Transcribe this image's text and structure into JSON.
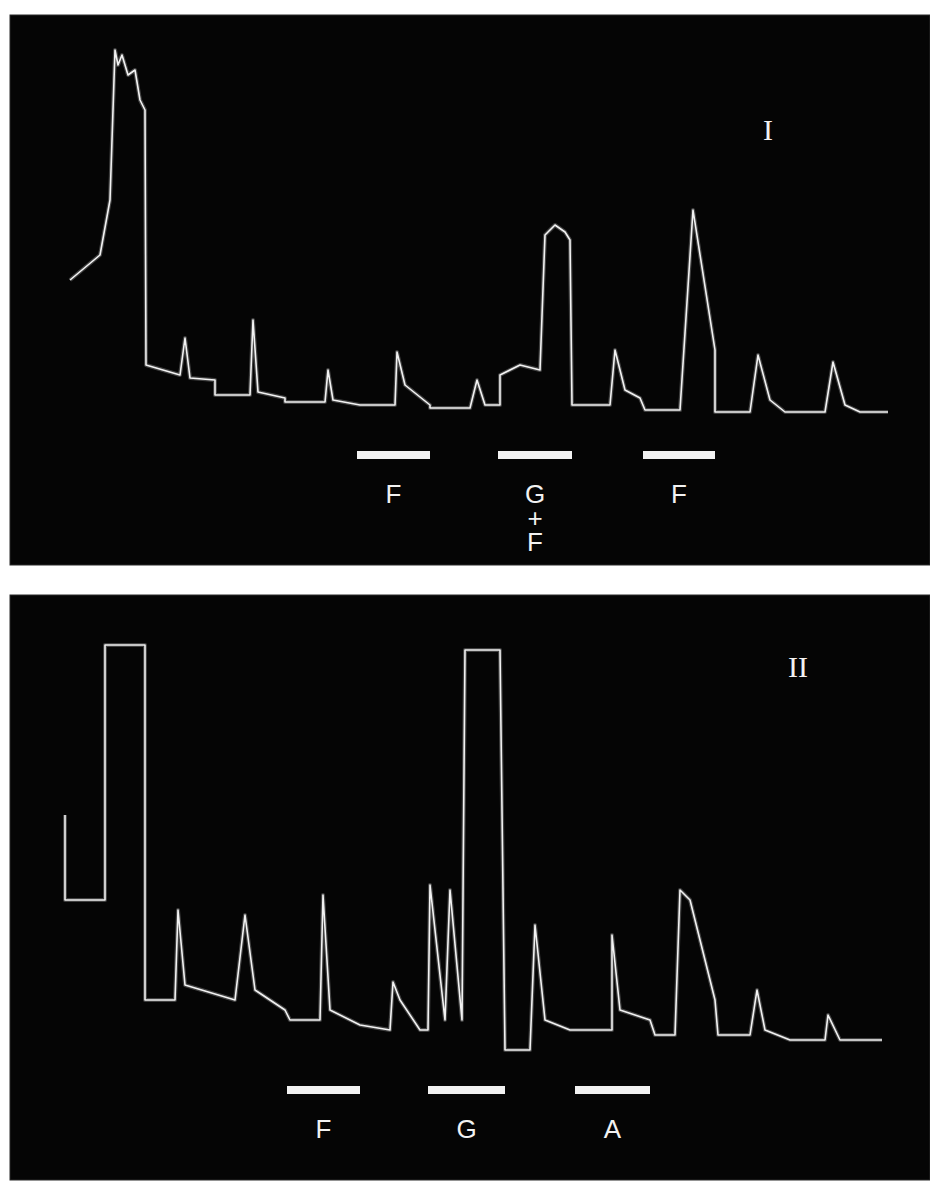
{
  "chart_data": [
    {
      "type": "line",
      "title": "I",
      "tick_labels": false,
      "grid": false,
      "color": "#f2f2f2",
      "xlim": [
        0,
        920
      ],
      "ylim": [
        0,
        550
      ],
      "x": [
        60,
        90,
        100,
        105,
        108,
        112,
        118,
        125,
        130,
        135,
        136,
        170,
        175,
        180,
        205,
        205,
        240,
        243,
        248,
        275,
        275,
        315,
        318,
        323,
        350,
        385,
        387,
        395,
        420,
        420,
        460,
        467,
        475,
        490,
        490,
        510,
        530,
        535,
        545,
        555,
        560,
        562,
        600,
        605,
        615,
        630,
        635,
        670,
        683,
        705,
        705,
        740,
        748,
        760,
        775,
        815,
        823,
        835,
        850,
        878
      ],
      "values": [
        285,
        310,
        365,
        515,
        500,
        510,
        490,
        495,
        465,
        455,
        200,
        190,
        227,
        187,
        185,
        170,
        170,
        245,
        173,
        167,
        163,
        163,
        195,
        165,
        160,
        160,
        213,
        180,
        160,
        157,
        157,
        185,
        160,
        160,
        190,
        200,
        195,
        330,
        340,
        333,
        325,
        160,
        160,
        215,
        175,
        167,
        155,
        155,
        355,
        215,
        153,
        153,
        210,
        165,
        153,
        153,
        203,
        160,
        153,
        153
      ],
      "annotations": [
        {
          "text": [
            "F"
          ],
          "x": [
            347,
            420
          ],
          "y": 110
        },
        {
          "text": [
            "G",
            "+",
            "F"
          ],
          "x": [
            488,
            562
          ],
          "y": 110
        },
        {
          "text": [
            "F"
          ],
          "x": [
            633,
            705
          ],
          "y": 110
        }
      ]
    },
    {
      "type": "line",
      "title": "II",
      "tick_labels": false,
      "grid": false,
      "color": "#f2f2f2",
      "xlim": [
        0,
        920
      ],
      "ylim": [
        0,
        585
      ],
      "x": [
        55,
        55,
        95,
        95,
        135,
        135,
        165,
        168,
        175,
        225,
        235,
        245,
        275,
        280,
        310,
        313,
        320,
        350,
        380,
        383,
        390,
        410,
        418,
        420,
        435,
        440,
        452,
        455,
        490,
        495,
        520,
        525,
        535,
        560,
        602,
        602,
        610,
        640,
        645,
        665,
        670,
        680,
        705,
        708,
        740,
        747,
        755,
        780,
        815,
        818,
        830,
        872
      ],
      "values": [
        365,
        280,
        280,
        535,
        535,
        180,
        180,
        270,
        195,
        180,
        265,
        190,
        170,
        160,
        160,
        285,
        170,
        155,
        150,
        198,
        180,
        150,
        150,
        295,
        160,
        290,
        160,
        530,
        530,
        130,
        130,
        255,
        160,
        150,
        150,
        245,
        170,
        160,
        145,
        145,
        290,
        280,
        180,
        145,
        145,
        190,
        150,
        140,
        140,
        165,
        140,
        140
      ],
      "annotations": [
        {
          "text": [
            "F"
          ],
          "x": [
            277,
            350
          ],
          "y": 90
        },
        {
          "text": [
            "G"
          ],
          "x": [
            418,
            495
          ],
          "y": 90
        },
        {
          "text": [
            "A"
          ],
          "x": [
            565,
            640
          ],
          "y": 90
        }
      ]
    }
  ]
}
